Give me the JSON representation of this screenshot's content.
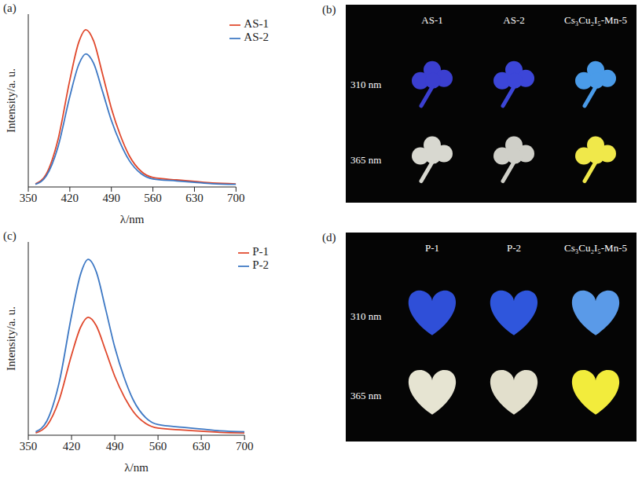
{
  "chart_data": [
    {
      "panel": "(a)",
      "type": "line",
      "x_label": "λ/nm",
      "y_label": "Intensity/a. u.",
      "xlim": [
        350,
        700
      ],
      "xticks": [
        350,
        420,
        490,
        560,
        630,
        700
      ],
      "ylim": [
        0,
        1
      ],
      "tick_labels": "x",
      "legend": "upper right",
      "x": [
        362,
        380,
        400,
        420,
        435,
        447,
        460,
        475,
        490,
        505,
        520,
        540,
        560,
        600,
        630,
        660,
        700
      ],
      "series": [
        {
          "name": "AS-1",
          "color": "#e0482c",
          "values": [
            0.018,
            0.073,
            0.273,
            0.619,
            0.837,
            0.91,
            0.846,
            0.655,
            0.455,
            0.3,
            0.182,
            0.091,
            0.055,
            0.041,
            0.032,
            0.023,
            0.018
          ]
        },
        {
          "name": "AS-2",
          "color": "#3d78c4",
          "values": [
            0.015,
            0.062,
            0.231,
            0.524,
            0.708,
            0.77,
            0.716,
            0.554,
            0.385,
            0.254,
            0.154,
            0.077,
            0.046,
            0.035,
            0.027,
            0.019,
            0.015
          ]
        }
      ]
    },
    {
      "panel": "(c)",
      "type": "line",
      "x_label": "λ/nm",
      "y_label": "Intensity/a. u.",
      "xlim": [
        350,
        700
      ],
      "xticks": [
        350,
        420,
        490,
        560,
        630,
        700
      ],
      "ylim": [
        0,
        1
      ],
      "tick_labels": "x",
      "legend": "upper right",
      "x": [
        362,
        380,
        400,
        420,
        435,
        447,
        460,
        475,
        490,
        505,
        520,
        540,
        560,
        600,
        630,
        660,
        700
      ],
      "series": [
        {
          "name": "P-1",
          "color": "#e0482c",
          "values": [
            0.012,
            0.049,
            0.183,
            0.415,
            0.561,
            0.61,
            0.567,
            0.439,
            0.305,
            0.201,
            0.122,
            0.061,
            0.037,
            0.027,
            0.021,
            0.015,
            0.012
          ]
        },
        {
          "name": "P-2",
          "color": "#3d78c4",
          "values": [
            0.018,
            0.073,
            0.273,
            0.619,
            0.837,
            0.91,
            0.846,
            0.655,
            0.455,
            0.3,
            0.182,
            0.091,
            0.055,
            0.041,
            0.032,
            0.023,
            0.018
          ]
        }
      ]
    }
  ],
  "photos": [
    {
      "panel": "(b)",
      "shape": "clover",
      "columns": [
        "AS-1",
        "AS-2",
        "Cs₃Cu₂I₅-Mn-5"
      ],
      "rows": [
        {
          "label": "310 nm",
          "colors": [
            "#3b3fd0",
            "#3c46d8",
            "#4a9be8"
          ]
        },
        {
          "label": "365 nm",
          "colors": [
            "#d8d8d0",
            "#cfcfc8",
            "#f0e84a"
          ]
        }
      ]
    },
    {
      "panel": "(d)",
      "shape": "heart",
      "columns": [
        "P-1",
        "P-2",
        "Cs₃Cu₂I₅-Mn-5"
      ],
      "rows": [
        {
          "label": "310 nm",
          "colors": [
            "#2f4fd8",
            "#2f56dc",
            "#5a9ae8"
          ]
        },
        {
          "label": "365 nm",
          "colors": [
            "#e6e4d2",
            "#e2dfcc",
            "#f2ec3c"
          ]
        }
      ]
    }
  ]
}
